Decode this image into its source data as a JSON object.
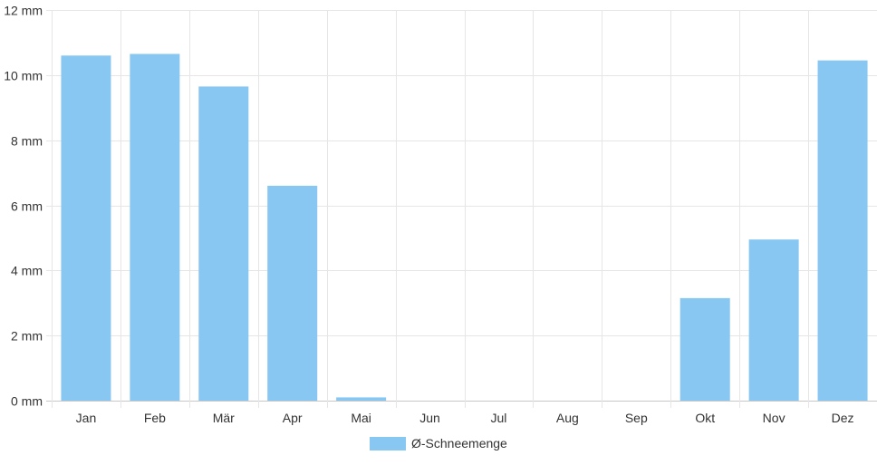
{
  "chart_data": {
    "type": "bar",
    "categories": [
      "Jan",
      "Feb",
      "Mär",
      "Apr",
      "Mai",
      "Jun",
      "Jul",
      "Aug",
      "Sep",
      "Okt",
      "Nov",
      "Dez"
    ],
    "series": [
      {
        "name": "Ø-Schneemenge",
        "values": [
          10.6,
          10.65,
          9.65,
          6.6,
          0.1,
          0,
          0,
          0,
          0,
          3.15,
          4.95,
          10.45
        ]
      }
    ],
    "y_ticks": [
      "0 mm",
      "2 mm",
      "4 mm",
      "6 mm",
      "8 mm",
      "10 mm",
      "12 mm"
    ],
    "ylim": [
      0,
      12
    ],
    "y_unit": "mm",
    "grid": true,
    "legend_position": "bottom-center",
    "bar_color": "#87c7f2"
  }
}
